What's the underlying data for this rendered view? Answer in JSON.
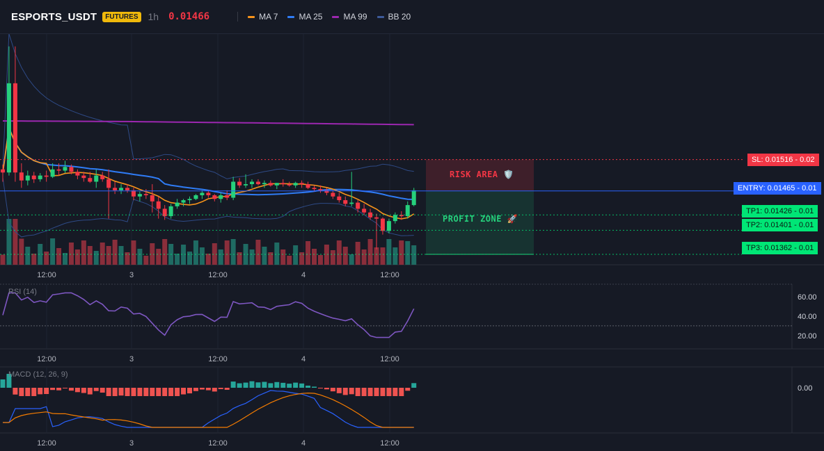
{
  "header": {
    "symbol": "ESPORTS_USDT",
    "badge": "FUTURES",
    "timeframe": "1h",
    "last_price": "0.01466",
    "legend": [
      {
        "label": "MA 7",
        "color": "#f7931a"
      },
      {
        "label": "MA 25",
        "color": "#2f7cf6"
      },
      {
        "label": "MA 99",
        "color": "#9c27b0"
      },
      {
        "label": "BB 20",
        "color": "#3d5a9a"
      }
    ]
  },
  "levels": {
    "sl": {
      "label": "SL: 0.01516 - 0.02",
      "value": 0.01516,
      "color": "#f23645"
    },
    "entry": {
      "label": "ENTRY: 0.01465 - 0.01",
      "value": 0.01465,
      "color": "#2962ff"
    },
    "tp1": {
      "label": "TP1: 0.01426 - 0.01",
      "value": 0.01426,
      "color": "#00e676"
    },
    "tp2": {
      "label": "TP2: 0.01401 - 0.01",
      "value": 0.01401,
      "color": "#00e676"
    },
    "tp3": {
      "label": "TP3: 0.01362 - 0.01",
      "value": 0.01362,
      "color": "#00e676"
    }
  },
  "zones": {
    "risk_label": "RISK AREA 🛡️",
    "profit_label": "PROFIT ZONE 🚀"
  },
  "x_ticks": [
    "12:00",
    "3",
    "12:00",
    "4",
    "12:00"
  ],
  "rsi_panel": {
    "label": "RSI (14)",
    "ticks": [
      "60.00",
      "40.00",
      "20.00"
    ]
  },
  "macd_panel": {
    "label": "MACD (12, 26, 9)",
    "ticks": [
      "0.00"
    ]
  },
  "chart_data": {
    "type": "candlestick",
    "price_range": [
      0.01345,
      0.0172
    ],
    "candles": [
      [
        0.015,
        0.01508,
        0.0148,
        0.01495
      ],
      [
        0.01495,
        0.017,
        0.0149,
        0.0164
      ],
      [
        0.0164,
        0.017,
        0.0148,
        0.01495
      ],
      [
        0.01495,
        0.0151,
        0.0147,
        0.01482
      ],
      [
        0.01482,
        0.01498,
        0.01474,
        0.0149
      ],
      [
        0.0149,
        0.01496,
        0.01478,
        0.01484
      ],
      [
        0.01484,
        0.01494,
        0.0148,
        0.0149
      ],
      [
        0.0149,
        0.01498,
        0.0148,
        0.01488
      ],
      [
        0.01488,
        0.0151,
        0.01486,
        0.015
      ],
      [
        0.015,
        0.0151,
        0.0149,
        0.01498
      ],
      [
        0.01498,
        0.01514,
        0.01494,
        0.01504
      ],
      [
        0.01504,
        0.01508,
        0.01492,
        0.01496
      ],
      [
        0.01496,
        0.015,
        0.01484,
        0.0149
      ],
      [
        0.0149,
        0.01496,
        0.0148,
        0.01486
      ],
      [
        0.01486,
        0.01496,
        0.01478,
        0.0148
      ],
      [
        0.0148,
        0.015,
        0.0147,
        0.0149
      ],
      [
        0.0149,
        0.01496,
        0.0148,
        0.01484
      ],
      [
        0.01484,
        0.015,
        0.0142,
        0.0147
      ],
      [
        0.0147,
        0.0148,
        0.0146,
        0.01466
      ],
      [
        0.01466,
        0.01476,
        0.0146,
        0.0147
      ],
      [
        0.0147,
        0.01476,
        0.01462,
        0.01466
      ],
      [
        0.01466,
        0.0147,
        0.0145,
        0.01456
      ],
      [
        0.01456,
        0.01464,
        0.01448,
        0.0146
      ],
      [
        0.0146,
        0.01468,
        0.01452,
        0.01458
      ],
      [
        0.01458,
        0.01476,
        0.0143,
        0.01448
      ],
      [
        0.01448,
        0.01456,
        0.0142,
        0.01436
      ],
      [
        0.01436,
        0.01442,
        0.01418,
        0.01424
      ],
      [
        0.01424,
        0.01444,
        0.0142,
        0.0144
      ],
      [
        0.0144,
        0.01452,
        0.01436,
        0.01446
      ],
      [
        0.01446,
        0.01452,
        0.0144,
        0.0145
      ],
      [
        0.0145,
        0.01456,
        0.01444,
        0.01452
      ],
      [
        0.01452,
        0.0146,
        0.0145,
        0.01458
      ],
      [
        0.01458,
        0.01466,
        0.01452,
        0.01462
      ],
      [
        0.01462,
        0.01466,
        0.01454,
        0.01458
      ],
      [
        0.01458,
        0.0146,
        0.01448,
        0.01452
      ],
      [
        0.01452,
        0.01462,
        0.01446,
        0.01458
      ],
      [
        0.01458,
        0.01466,
        0.0145,
        0.01454
      ],
      [
        0.01454,
        0.01488,
        0.0145,
        0.0148
      ],
      [
        0.0148,
        0.01486,
        0.0147,
        0.01474
      ],
      [
        0.01474,
        0.01492,
        0.0147,
        0.01476
      ],
      [
        0.01476,
        0.01484,
        0.0147,
        0.0148
      ],
      [
        0.0148,
        0.01484,
        0.01474,
        0.01476
      ],
      [
        0.01476,
        0.01482,
        0.0147,
        0.01478
      ],
      [
        0.01478,
        0.01482,
        0.01472,
        0.01474
      ],
      [
        0.01474,
        0.01478,
        0.01468,
        0.01478
      ],
      [
        0.01478,
        0.01484,
        0.01472,
        0.01476
      ],
      [
        0.01476,
        0.0148,
        0.01472,
        0.01474
      ],
      [
        0.01474,
        0.0148,
        0.0147,
        0.01478
      ],
      [
        0.01478,
        0.01482,
        0.0147,
        0.01476
      ],
      [
        0.01476,
        0.0148,
        0.01468,
        0.0147
      ],
      [
        0.0147,
        0.01474,
        0.01464,
        0.01468
      ],
      [
        0.01468,
        0.01474,
        0.01462,
        0.01466
      ],
      [
        0.01466,
        0.0147,
        0.01458,
        0.01462
      ],
      [
        0.01462,
        0.01466,
        0.01452,
        0.01456
      ],
      [
        0.01456,
        0.01462,
        0.01446,
        0.0145
      ],
      [
        0.0145,
        0.01456,
        0.0144,
        0.01444
      ],
      [
        0.01444,
        0.01496,
        0.0144,
        0.01446
      ],
      [
        0.01446,
        0.0145,
        0.0143,
        0.01436
      ],
      [
        0.01436,
        0.01444,
        0.01426,
        0.0143
      ],
      [
        0.0143,
        0.01436,
        0.01418,
        0.01422
      ],
      [
        0.01422,
        0.01428,
        0.0137,
        0.0142
      ],
      [
        0.0142,
        0.01422,
        0.01394,
        0.014
      ],
      [
        0.014,
        0.0142,
        0.01396,
        0.01416
      ],
      [
        0.01416,
        0.0143,
        0.01412,
        0.01426
      ],
      [
        0.01426,
        0.01432,
        0.01418,
        0.01424
      ],
      [
        0.01424,
        0.01448,
        0.0142,
        0.01442
      ],
      [
        0.01442,
        0.0147,
        0.0144,
        0.01466
      ]
    ]
  }
}
